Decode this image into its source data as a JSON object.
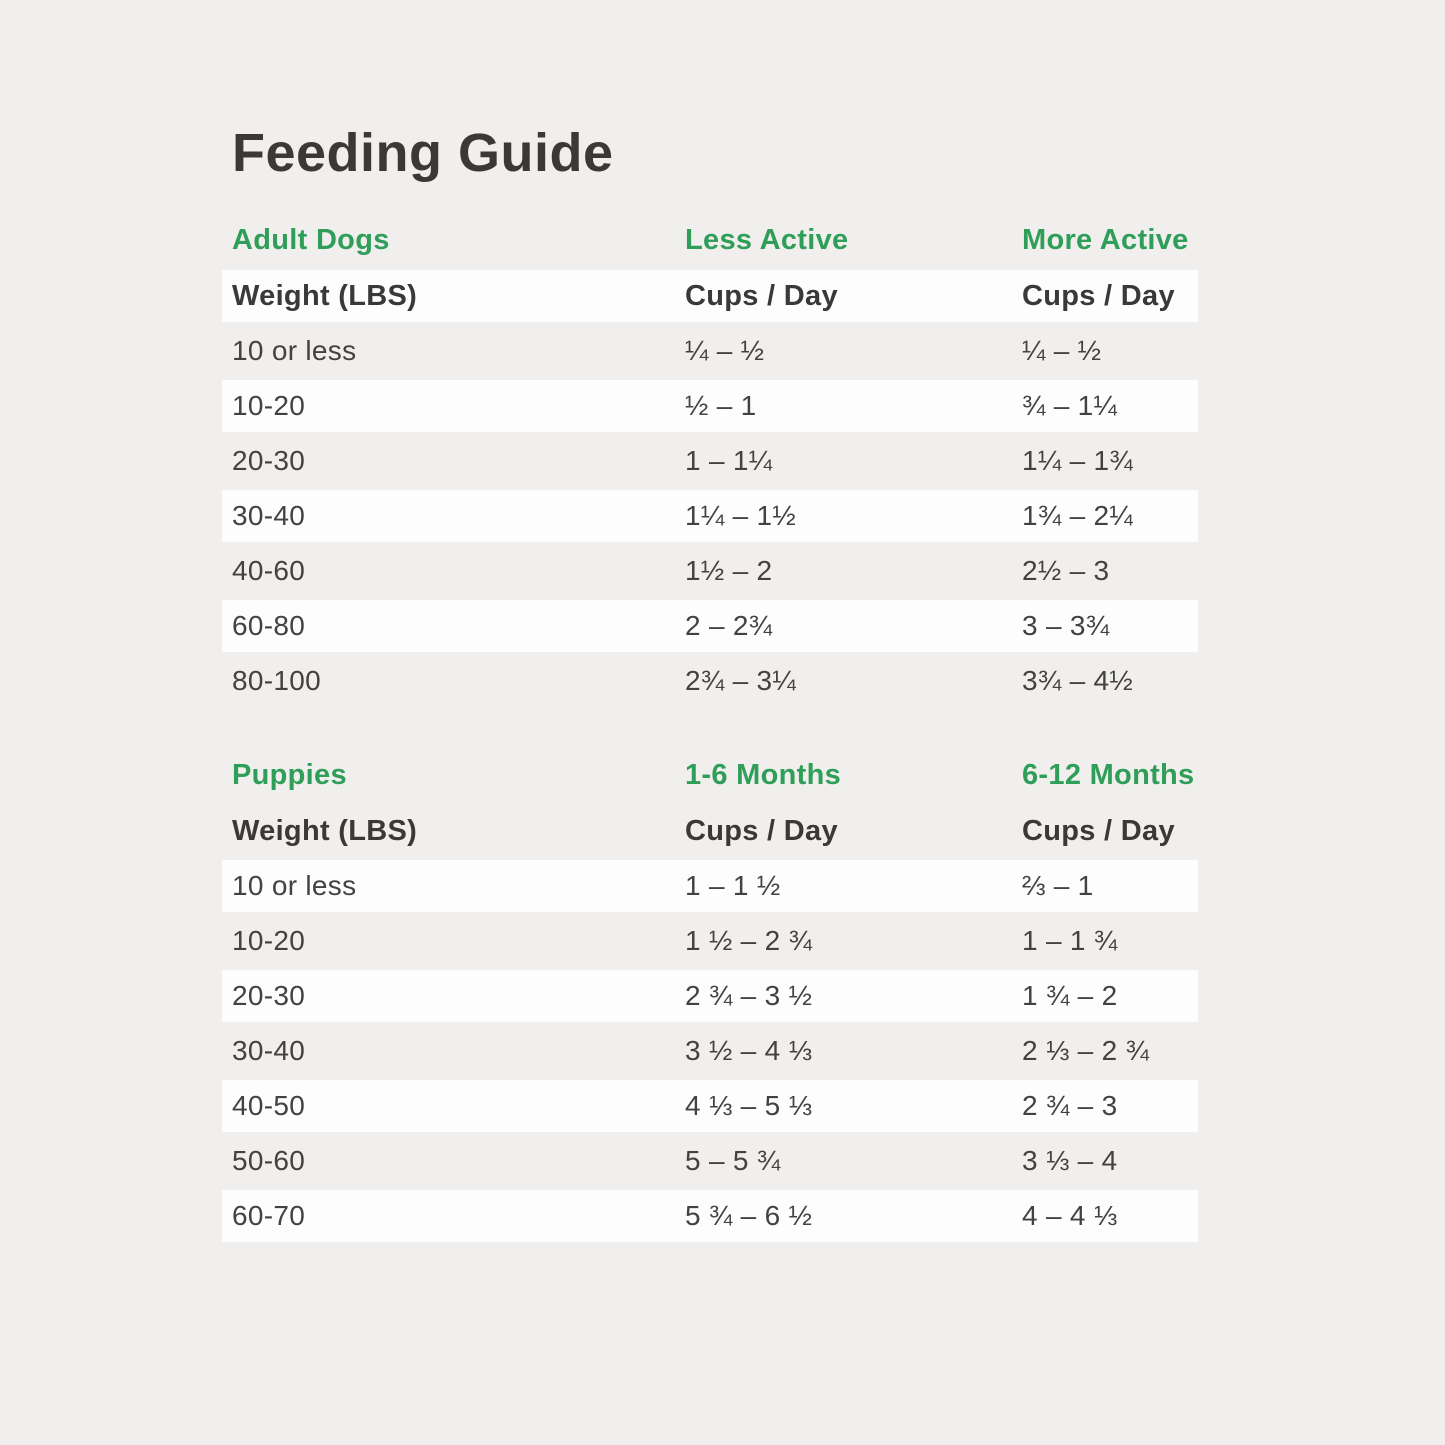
{
  "page_title": "Feeding Guide",
  "colors": {
    "page_background": "#f1efed",
    "row_band": "#fdfdfd",
    "accent_green": "#2f9e58",
    "text_dark": "#3a3938"
  },
  "chart_data": [
    {
      "type": "table",
      "section_label": "Adult Dogs",
      "col2_label": "Less Active",
      "col3_label": "More Active",
      "header": [
        "Weight (LBS)",
        "Cups / Day",
        "Cups / Day"
      ],
      "rows": [
        [
          "10 or less",
          "¼ – ½",
          "¼ – ½"
        ],
        [
          "10-20",
          "½ – 1",
          "¾ – 1¼"
        ],
        [
          "20-30",
          "1 – 1¼",
          "1¼ – 1¾"
        ],
        [
          "30-40",
          "1¼ – 1½",
          "1¾ – 2¼"
        ],
        [
          "40-60",
          "1½ – 2",
          "2½ – 3"
        ],
        [
          "60-80",
          "2 – 2¾",
          "3 – 3¾"
        ],
        [
          "80-100",
          "2¾ – 3¼",
          "3¾ – 4½"
        ]
      ]
    },
    {
      "type": "table",
      "section_label": "Puppies",
      "col2_label": "1-6 Months",
      "col3_label": "6-12 Months",
      "header": [
        "Weight (LBS)",
        "Cups / Day",
        "Cups / Day"
      ],
      "rows": [
        [
          "10 or less",
          "1 – 1 ½",
          "⅔ – 1"
        ],
        [
          "10-20",
          "1 ½ – 2 ¾",
          "1 – 1 ¾"
        ],
        [
          "20-30",
          "2 ¾ – 3 ½",
          "1 ¾ – 2"
        ],
        [
          "30-40",
          "3 ½ – 4 ⅓",
          "2 ⅓ – 2 ¾"
        ],
        [
          "40-50",
          "4 ⅓ – 5 ⅓",
          "2 ¾ – 3"
        ],
        [
          "50-60",
          "5 – 5 ¾",
          "3 ⅓ – 4"
        ],
        [
          "60-70",
          "5 ¾ – 6 ½",
          "4 – 4 ⅓"
        ]
      ]
    }
  ]
}
